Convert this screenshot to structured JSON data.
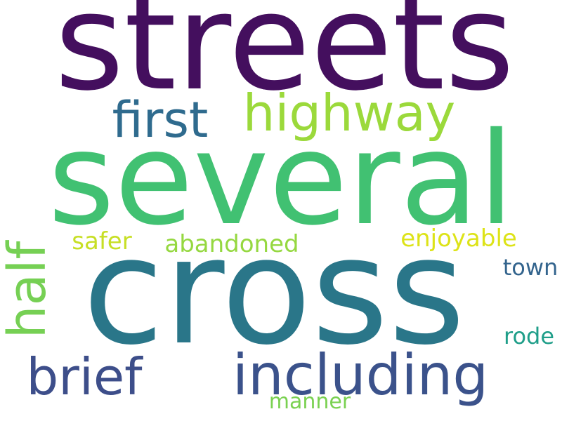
{
  "background": "#ffffff",
  "words": [
    {
      "text": "streets",
      "color": "#440f5e"
    },
    {
      "text": "several",
      "color": "#41c172"
    },
    {
      "text": "cross",
      "color": "#2a7689"
    },
    {
      "text": "highway",
      "color": "#9bd93b"
    },
    {
      "text": "first",
      "color": "#2f6b8e"
    },
    {
      "text": "half",
      "color": "#76d054"
    },
    {
      "text": "including",
      "color": "#3b528b"
    },
    {
      "text": "brief",
      "color": "#3d4e8a"
    },
    {
      "text": "safer",
      "color": "#c7df25"
    },
    {
      "text": "abandoned",
      "color": "#95d840"
    },
    {
      "text": "enjoyable",
      "color": "#dde318"
    },
    {
      "text": "town",
      "color": "#33648d"
    },
    {
      "text": "rode",
      "color": "#1f9e89"
    },
    {
      "text": "manner",
      "color": "#7ad151"
    }
  ]
}
